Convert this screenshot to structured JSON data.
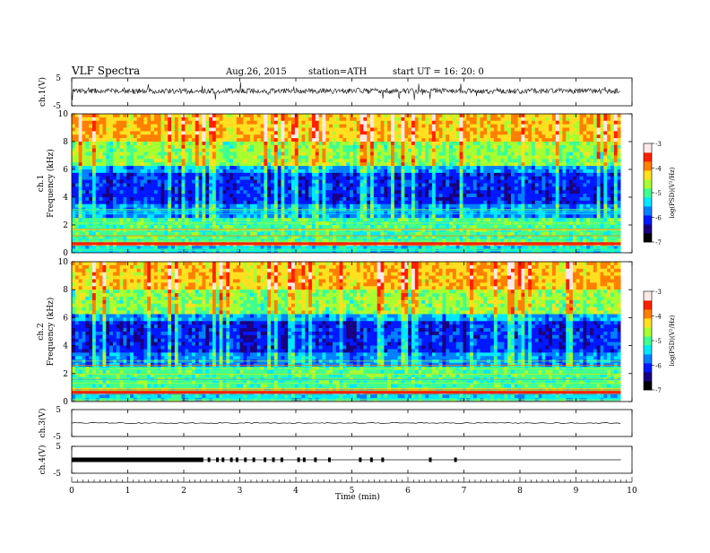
{
  "header": {
    "title": "VLF  Spectra",
    "date": "Aug.26, 2015",
    "station": "station=ATH",
    "start": "start  UT  =   16: 20: 0"
  },
  "colors": {
    "spectrogram_scale": [
      "#000000",
      "#1a0080",
      "#0018ff",
      "#0080ff",
      "#00e8ff",
      "#40ff90",
      "#a8ff30",
      "#ffe020",
      "#ff8000",
      "#ff2000",
      "#ffe8e8"
    ]
  },
  "chart_data": [
    {
      "type": "line",
      "name": "ch1-waveform",
      "ylabel": "ch.1(V)",
      "ylim": [
        -5,
        5
      ],
      "yticks": [
        "5",
        "-5"
      ],
      "xlim": [
        0,
        10
      ],
      "x_end": 9.8
    },
    {
      "type": "heatmap",
      "name": "ch1-spectrogram",
      "ylabel": "ch.1 Frequency (kHz)",
      "ylabel_lines": [
        "ch.1",
        "Frequency  (kHz)"
      ],
      "ylim": [
        0,
        10
      ],
      "yticks": [
        "0",
        "2",
        "4",
        "6",
        "8",
        "10"
      ],
      "xlim": [
        0,
        10
      ],
      "x_end": 9.8,
      "colorbar": {
        "label": "log(PSD)(V²/Hz)",
        "range": [
          -7,
          -3
        ],
        "ticks": [
          "-3",
          "-4",
          "-5",
          "-6",
          "-7"
        ]
      }
    },
    {
      "type": "heatmap",
      "name": "ch2-spectrogram",
      "ylabel": "ch.2 Frequency (kHz)",
      "ylabel_lines": [
        "ch.2",
        "Frequency  (kHz)"
      ],
      "ylim": [
        0,
        10
      ],
      "yticks": [
        "0",
        "2",
        "4",
        "6",
        "8",
        "10"
      ],
      "xlim": [
        0,
        10
      ],
      "x_end": 9.8,
      "colorbar": {
        "label": "log(PSD)(V²/Hz)",
        "range": [
          -7,
          -3
        ],
        "ticks": [
          "-3",
          "-4",
          "-5",
          "-6",
          "-7"
        ]
      }
    },
    {
      "type": "line",
      "name": "ch3-waveform",
      "ylabel": "ch.3(V)",
      "ylim": [
        -5,
        5
      ],
      "yticks": [
        "5",
        "-5"
      ],
      "xlim": [
        0,
        10
      ],
      "x_end": 9.8
    },
    {
      "type": "line",
      "name": "ch4-waveform",
      "ylabel": "ch.4(V)",
      "ylim": [
        -5,
        5
      ],
      "yticks": [
        "5",
        "-5"
      ],
      "xlim": [
        0,
        10
      ],
      "x_end": 9.8,
      "pulse_times_min": [
        0.05,
        0.3,
        0.6,
        0.9,
        1.2,
        1.5,
        1.8,
        2.1,
        2.25,
        2.45,
        2.6,
        2.7,
        2.85,
        2.95,
        3.1,
        3.25,
        3.45,
        3.6,
        3.75,
        4.05,
        4.15,
        4.35,
        4.6,
        5.15,
        5.35,
        5.55,
        6.4,
        6.85
      ]
    }
  ],
  "x_axis": {
    "label": "Time  (min)",
    "range": [
      0,
      10
    ],
    "ticks": [
      "0",
      "1",
      "2",
      "3",
      "4",
      "5",
      "6",
      "7",
      "8",
      "9",
      "10"
    ]
  }
}
